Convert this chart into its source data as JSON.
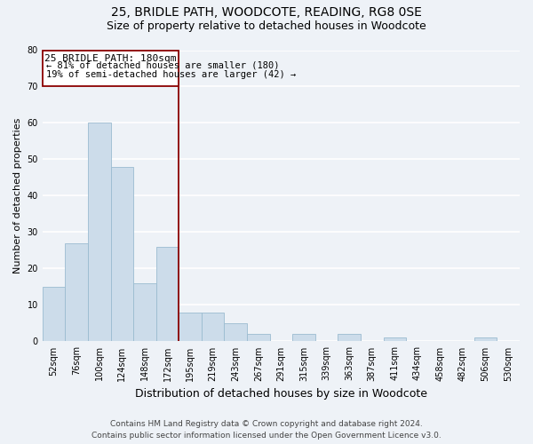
{
  "title": "25, BRIDLE PATH, WOODCOTE, READING, RG8 0SE",
  "subtitle": "Size of property relative to detached houses in Woodcote",
  "xlabel": "Distribution of detached houses by size in Woodcote",
  "ylabel": "Number of detached properties",
  "bar_labels": [
    "52sqm",
    "76sqm",
    "100sqm",
    "124sqm",
    "148sqm",
    "172sqm",
    "195sqm",
    "219sqm",
    "243sqm",
    "267sqm",
    "291sqm",
    "315sqm",
    "339sqm",
    "363sqm",
    "387sqm",
    "411sqm",
    "434sqm",
    "458sqm",
    "482sqm",
    "506sqm",
    "530sqm"
  ],
  "bar_heights": [
    15,
    27,
    60,
    48,
    16,
    26,
    8,
    8,
    5,
    2,
    0,
    2,
    0,
    2,
    0,
    1,
    0,
    0,
    0,
    1,
    0
  ],
  "bar_color": "#ccdcea",
  "bar_edge_color": "#9bbbd0",
  "vline_color": "#8b0000",
  "vline_bar_index": 5,
  "ylim": [
    0,
    80
  ],
  "yticks": [
    0,
    10,
    20,
    30,
    40,
    50,
    60,
    70,
    80
  ],
  "annotation_title": "25 BRIDLE PATH: 180sqm",
  "annotation_line1": "← 81% of detached houses are smaller (180)",
  "annotation_line2": "19% of semi-detached houses are larger (42) →",
  "annotation_box_facecolor": "#ffffff",
  "annotation_box_edgecolor": "#8b0000",
  "footer_line1": "Contains HM Land Registry data © Crown copyright and database right 2024.",
  "footer_line2": "Contains public sector information licensed under the Open Government Licence v3.0.",
  "background_color": "#eef2f7",
  "grid_color": "#ffffff",
  "title_fontsize": 10,
  "subtitle_fontsize": 9,
  "xlabel_fontsize": 9,
  "ylabel_fontsize": 8,
  "tick_fontsize": 7,
  "annotation_title_fontsize": 8,
  "annotation_text_fontsize": 7.5,
  "footer_fontsize": 6.5
}
